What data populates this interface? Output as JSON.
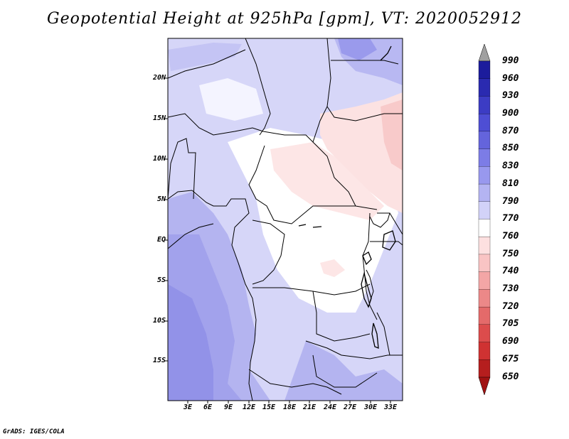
{
  "title": "Geopotential Height at 925hPa [gpm], VT: 2020052912",
  "credit": "GrADS: IGES/COLA",
  "map": {
    "variable": "Geopotential Height",
    "level": "925hPa",
    "units": "gpm",
    "valid_time": "2020052912",
    "lat_labels": [
      "20N",
      "15N",
      "10N",
      "5N",
      "EQ",
      "5S",
      "10S",
      "15S"
    ],
    "lon_labels": [
      "3E",
      "6E",
      "9E",
      "12E",
      "15E",
      "18E",
      "21E",
      "24E",
      "27E",
      "30E",
      "33E"
    ]
  },
  "colorbar": {
    "labels": [
      "990",
      "960",
      "930",
      "900",
      "870",
      "850",
      "830",
      "810",
      "790",
      "770",
      "760",
      "750",
      "740",
      "730",
      "720",
      "705",
      "690",
      "675",
      "650"
    ],
    "colors": [
      "#a0a0a0",
      "#1c1c9c",
      "#2a2ab0",
      "#3c3cc4",
      "#4e4ed4",
      "#6464dc",
      "#7c7ce6",
      "#9898ee",
      "#b4b4f2",
      "#d2d2f8",
      "#ffffff",
      "#fde0e0",
      "#f9c4c4",
      "#f3a6a6",
      "#ec8888",
      "#e46a6a",
      "#dc4c4c",
      "#cf3232",
      "#b51e1e",
      "#a01212"
    ]
  }
}
